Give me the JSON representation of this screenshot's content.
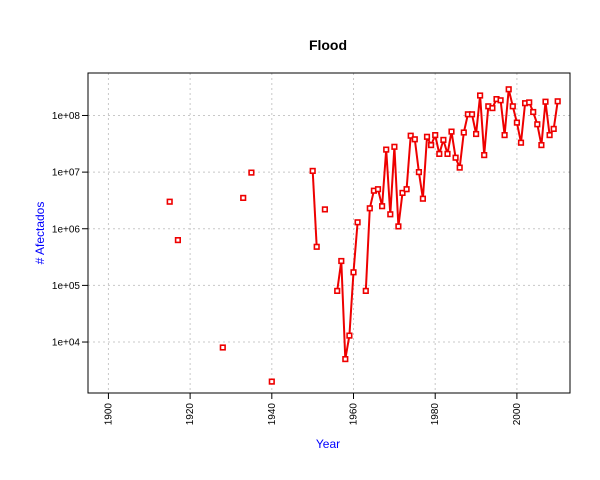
{
  "chart_data": {
    "type": "line",
    "title": "Flood",
    "xlabel": "Year",
    "ylabel": "# Afectados",
    "xlim": [
      1895,
      2013
    ],
    "ylim_log10": [
      3.1,
      8.75
    ],
    "y_scale": "log",
    "grid": true,
    "colors": {
      "series": "#ee0000",
      "axis_label": "#0000ff",
      "grid": "#c8c8c8"
    },
    "x_ticks": [
      {
        "value": 1900,
        "label": "1900"
      },
      {
        "value": 1920,
        "label": "1920"
      },
      {
        "value": 1940,
        "label": "1940"
      },
      {
        "value": 1960,
        "label": "1960"
      },
      {
        "value": 1980,
        "label": "1980"
      },
      {
        "value": 2000,
        "label": "2000"
      }
    ],
    "y_ticks": [
      {
        "value": 10000,
        "label": "1e+04"
      },
      {
        "value": 100000,
        "label": "1e+05"
      },
      {
        "value": 1000000,
        "label": "1e+06"
      },
      {
        "value": 10000000,
        "label": "1e+07"
      },
      {
        "value": 100000000,
        "label": "1e+08"
      }
    ],
    "points": [
      [
        1915,
        3000000
      ],
      [
        1917,
        630000
      ],
      [
        1928,
        8000
      ],
      [
        1933,
        3500000
      ],
      [
        1935,
        9800000
      ],
      [
        1940,
        2000
      ],
      [
        1950,
        10500000
      ],
      [
        1951,
        480000
      ],
      [
        1953,
        2200000
      ],
      [
        1956,
        80000
      ],
      [
        1957,
        270000
      ],
      [
        1958,
        5000
      ],
      [
        1959,
        13000
      ],
      [
        1960,
        170000
      ],
      [
        1961,
        1300000
      ],
      [
        1963,
        80000
      ],
      [
        1964,
        2300000
      ],
      [
        1965,
        4700000
      ],
      [
        1966,
        5000000
      ],
      [
        1967,
        2500000
      ],
      [
        1968,
        25000000
      ],
      [
        1969,
        1800000
      ],
      [
        1970,
        28000000
      ],
      [
        1971,
        1100000
      ],
      [
        1972,
        4300000
      ],
      [
        1973,
        5000000
      ],
      [
        1974,
        44000000
      ],
      [
        1975,
        38000000
      ],
      [
        1976,
        10000000
      ],
      [
        1977,
        3400000
      ],
      [
        1978,
        42000000
      ],
      [
        1979,
        30000000
      ],
      [
        1980,
        45000000
      ],
      [
        1981,
        21000000
      ],
      [
        1982,
        37000000
      ],
      [
        1983,
        21000000
      ],
      [
        1984,
        52000000
      ],
      [
        1985,
        18000000
      ],
      [
        1986,
        12000000
      ],
      [
        1987,
        50000000
      ],
      [
        1988,
        105000000
      ],
      [
        1989,
        105000000
      ],
      [
        1990,
        47000000
      ],
      [
        1991,
        225000000
      ],
      [
        1992,
        20000000
      ],
      [
        1993,
        145000000
      ],
      [
        1994,
        135000000
      ],
      [
        1995,
        195000000
      ],
      [
        1996,
        185000000
      ],
      [
        1997,
        45000000
      ],
      [
        1998,
        290000000
      ],
      [
        1999,
        145000000
      ],
      [
        2000,
        75000000
      ],
      [
        2001,
        33000000
      ],
      [
        2002,
        165000000
      ],
      [
        2003,
        170000000
      ],
      [
        2004,
        115000000
      ],
      [
        2005,
        70000000
      ],
      [
        2006,
        30000000
      ],
      [
        2007,
        175000000
      ],
      [
        2008,
        45000000
      ],
      [
        2009,
        58000000
      ],
      [
        2010,
        178000000
      ]
    ],
    "segments": [
      [
        [
          1950,
          10500000
        ],
        [
          1951,
          480000
        ]
      ],
      [
        [
          1956,
          80000
        ],
        [
          1957,
          270000
        ],
        [
          1958,
          5000
        ],
        [
          1959,
          13000
        ],
        [
          1960,
          170000
        ],
        [
          1961,
          1300000
        ]
      ],
      [
        [
          1963,
          80000
        ],
        [
          1964,
          2300000
        ],
        [
          1965,
          4700000
        ],
        [
          1966,
          5000000
        ],
        [
          1967,
          2500000
        ],
        [
          1968,
          25000000
        ],
        [
          1969,
          1800000
        ],
        [
          1970,
          28000000
        ],
        [
          1971,
          1100000
        ],
        [
          1972,
          4300000
        ],
        [
          1973,
          5000000
        ],
        [
          1974,
          44000000
        ],
        [
          1975,
          38000000
        ],
        [
          1976,
          10000000
        ],
        [
          1977,
          3400000
        ],
        [
          1978,
          42000000
        ],
        [
          1979,
          30000000
        ],
        [
          1980,
          45000000
        ],
        [
          1981,
          21000000
        ],
        [
          1982,
          37000000
        ],
        [
          1983,
          21000000
        ],
        [
          1984,
          52000000
        ],
        [
          1985,
          18000000
        ],
        [
          1986,
          12000000
        ],
        [
          1987,
          50000000
        ],
        [
          1988,
          105000000
        ],
        [
          1989,
          105000000
        ],
        [
          1990,
          47000000
        ],
        [
          1991,
          225000000
        ],
        [
          1992,
          20000000
        ],
        [
          1993,
          145000000
        ],
        [
          1994,
          135000000
        ],
        [
          1995,
          195000000
        ],
        [
          1996,
          185000000
        ],
        [
          1997,
          45000000
        ],
        [
          1998,
          290000000
        ],
        [
          1999,
          145000000
        ],
        [
          2000,
          75000000
        ],
        [
          2001,
          33000000
        ],
        [
          2002,
          165000000
        ],
        [
          2003,
          170000000
        ],
        [
          2004,
          115000000
        ],
        [
          2005,
          70000000
        ],
        [
          2006,
          30000000
        ],
        [
          2007,
          175000000
        ],
        [
          2008,
          45000000
        ],
        [
          2009,
          58000000
        ],
        [
          2010,
          178000000
        ]
      ]
    ]
  }
}
